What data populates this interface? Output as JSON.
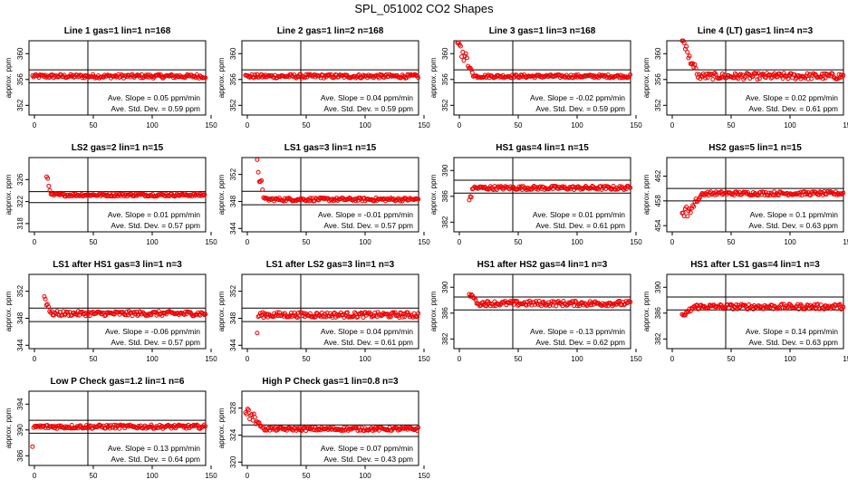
{
  "page_title": "SPL_051002  CO2 Shapes",
  "chart_data": [
    {
      "type": "scatter",
      "title": "Line 1 gas=1 lin=1 n=168",
      "ylabel": "approx. ppm",
      "xlim": [
        0,
        150
      ],
      "ylim": [
        350.5,
        362
      ],
      "yticks": [
        352,
        356,
        360
      ],
      "xticks": [
        0,
        50,
        100,
        150
      ],
      "hlines": [
        357.5,
        355.5
      ],
      "vline": 50,
      "annotation_1": "Ave. Slope =  0.05  ppm/min",
      "annotation_2": "Ave. Std. Dev. =  0.59  ppm",
      "series": [
        {
          "color": "#ee0000",
          "points": [
            [
              0.5,
              356.5
            ],
            [
              150,
              356.5
            ]
          ],
          "start": 3,
          "baseline": 356.5,
          "noise": 0.3,
          "spike": 0
        }
      ]
    },
    {
      "type": "scatter",
      "title": "Line 2 gas=1 lin=2 n=168",
      "ylabel": "approx. ppm",
      "xlim": [
        0,
        150
      ],
      "ylim": [
        350.5,
        362
      ],
      "yticks": [
        352,
        356,
        360
      ],
      "xticks": [
        0,
        50,
        100,
        150
      ],
      "hlines": [
        357.5,
        355.5
      ],
      "vline": 50,
      "annotation_1": "Ave. Slope =  0.04  ppm/min",
      "annotation_2": "Ave. Std. Dev. =  0.59  ppm",
      "series": [
        {
          "color": "#ee0000",
          "points": [],
          "start": 3,
          "baseline": 356.5,
          "noise": 0.3,
          "spike": 0
        }
      ]
    },
    {
      "type": "scatter",
      "title": "Line 3 gas=1 lin=3 n=168",
      "ylabel": "approx. ppm",
      "xlim": [
        0,
        150
      ],
      "ylim": [
        350.5,
        362
      ],
      "yticks": [
        352,
        356,
        360
      ],
      "xticks": [
        0,
        50,
        100,
        150
      ],
      "hlines": [
        357.5,
        355.5
      ],
      "vline": 50,
      "annotation_1": "Ave. Slope =  -0.02  ppm/min",
      "annotation_2": "Ave. Std. Dev. =  0.59  ppm",
      "series": [
        {
          "color": "#ee0000",
          "points": [],
          "start": 3,
          "baseline": 356.5,
          "noise": 0.25,
          "spike": 5.5,
          "spike_len": 14
        }
      ]
    },
    {
      "type": "scatter",
      "title": "Line 4 (LT) gas=1 lin=4 n=3",
      "ylabel": "approx. ppm",
      "xlim": [
        0,
        150
      ],
      "ylim": [
        350.5,
        362
      ],
      "yticks": [
        352,
        356,
        360
      ],
      "xticks": [
        0,
        50,
        100,
        150
      ],
      "hlines": [
        357.5,
        355.5
      ],
      "vline": 50,
      "annotation_1": "Ave. Slope =  0.02  ppm/min",
      "annotation_2": "Ave. Std. Dev. =  0.61  ppm",
      "series": [
        {
          "color": "#ee0000",
          "points": [],
          "start": 13,
          "baseline": 356.5,
          "noise": 0.5,
          "spike": 5.5,
          "spike_len": 14
        }
      ]
    },
    {
      "type": "scatter",
      "title": "LS2 gas=2 lin=1 n=15",
      "ylabel": "approx. ppm",
      "xlim": [
        0,
        150
      ],
      "ylim": [
        316.5,
        330
      ],
      "yticks": [
        318,
        322,
        326
      ],
      "xticks": [
        0,
        50,
        100,
        150
      ],
      "hlines": [
        323.8,
        321.8
      ],
      "vline": 50,
      "annotation_1": "Ave. Slope =  0.01  ppm/min",
      "annotation_2": "Ave. Std. Dev. =  0.57  ppm",
      "series": [
        {
          "color": "#ee0000",
          "points": [],
          "start": 15,
          "baseline": 323.2,
          "noise": 0.25,
          "spike": 3.0,
          "spike_len": 4
        }
      ]
    },
    {
      "type": "scatter",
      "title": "LS1 gas=3 lin=1 n=15",
      "ylabel": "approx. ppm",
      "xlim": [
        0,
        150
      ],
      "ylim": [
        343.5,
        354.5
      ],
      "yticks": [
        344,
        348,
        352
      ],
      "xticks": [
        0,
        50,
        100,
        150
      ],
      "hlines": [
        349.5,
        347.5
      ],
      "vline": 50,
      "annotation_1": "Ave. Slope =  -0.01  ppm/min",
      "annotation_2": "Ave. Std. Dev. =  0.57  ppm",
      "series": [
        {
          "color": "#ee0000",
          "points": [],
          "start": 13,
          "baseline": 348.3,
          "noise": 0.25,
          "spike": 5.5,
          "spike_len": 6
        }
      ]
    },
    {
      "type": "scatter",
      "title": "HS1 gas=4 lin=1 n=15",
      "ylabel": "approx. ppm",
      "xlim": [
        0,
        150
      ],
      "ylim": [
        380.5,
        392
      ],
      "yticks": [
        382,
        386,
        390
      ],
      "xticks": [
        0,
        50,
        100,
        150
      ],
      "hlines": [
        388.5,
        386.5
      ],
      "vline": 50,
      "annotation_1": "Ave. Slope =  0.01  ppm/min",
      "annotation_2": "Ave. Std. Dev. =  0.61  ppm",
      "series": [
        {
          "color": "#ee0000",
          "points": [],
          "start": 13,
          "baseline": 387.3,
          "noise": 0.3,
          "spike": -2.5,
          "spike_len": 3
        }
      ]
    },
    {
      "type": "scatter",
      "title": "HS2 gas=5 lin=1 n=15",
      "ylabel": "approx. ppm",
      "xlim": [
        0,
        150
      ],
      "ylim": [
        453,
        465
      ],
      "yticks": [
        454,
        458,
        462
      ],
      "xticks": [
        0,
        50,
        100,
        150
      ],
      "hlines": [
        460,
        458
      ],
      "vline": 50,
      "annotation_1": "Ave. Slope =  0.1  ppm/min",
      "annotation_2": "Ave. Std. Dev. =  0.63  ppm",
      "series": [
        {
          "color": "#ee0000",
          "points": [],
          "start": 13,
          "baseline": 459.2,
          "noise": 0.3,
          "spike": -4.0,
          "spike_len": 18
        }
      ]
    },
    {
      "type": "scatter",
      "title": "LS1 after HS1 gas=3 lin=1 n=3",
      "ylabel": "approx. ppm",
      "xlim": [
        0,
        150
      ],
      "ylim": [
        343.5,
        354.5
      ],
      "yticks": [
        344,
        348,
        352
      ],
      "xticks": [
        0,
        50,
        100,
        150
      ],
      "hlines": [
        349.5,
        347.5
      ],
      "vline": 50,
      "annotation_1": "Ave. Slope =  -0.06  ppm/min",
      "annotation_2": "Ave. Std. Dev. =  0.57  ppm",
      "series": [
        {
          "color": "#ee0000",
          "points": [],
          "start": 13,
          "baseline": 348.7,
          "noise": 0.35,
          "spike": 2.5,
          "spike_len": 6
        }
      ]
    },
    {
      "type": "scatter",
      "title": "LS1 after LS2 gas=3 lin=1 n=3",
      "ylabel": "approx. ppm",
      "xlim": [
        0,
        150
      ],
      "ylim": [
        343.5,
        354.5
      ],
      "yticks": [
        344,
        348,
        352
      ],
      "xticks": [
        0,
        50,
        100,
        150
      ],
      "hlines": [
        349.5,
        347.5
      ],
      "vline": 50,
      "annotation_1": "Ave. Slope =  0.04  ppm/min",
      "annotation_2": "Ave. Std. Dev. =  0.61  ppm",
      "series": [
        {
          "color": "#ee0000",
          "points": [],
          "start": 13,
          "baseline": 348.5,
          "noise": 0.4,
          "spike": -3.5,
          "spike_len": 1
        }
      ]
    },
    {
      "type": "scatter",
      "title": "HS1 after HS2 gas=4 lin=1 n=3",
      "ylabel": "approx. ppm",
      "xlim": [
        0,
        150
      ],
      "ylim": [
        380.5,
        392
      ],
      "yticks": [
        382,
        386,
        390
      ],
      "xticks": [
        0,
        50,
        100,
        150
      ],
      "hlines": [
        388.5,
        386.5
      ],
      "vline": 50,
      "annotation_1": "Ave. Slope =  -0.13  ppm/min",
      "annotation_2": "Ave. Std. Dev. =  0.62  ppm",
      "series": [
        {
          "color": "#ee0000",
          "points": [],
          "start": 13,
          "baseline": 387.5,
          "noise": 0.4,
          "spike": 1.5,
          "spike_len": 8
        }
      ]
    },
    {
      "type": "scatter",
      "title": "HS1 after LS1 gas=4 lin=1 n=3",
      "ylabel": "approx. ppm",
      "xlim": [
        0,
        150
      ],
      "ylim": [
        380.5,
        392
      ],
      "yticks": [
        382,
        386,
        390
      ],
      "xticks": [
        0,
        50,
        100,
        150
      ],
      "hlines": [
        388.5,
        386.5
      ],
      "vline": 50,
      "annotation_1": "Ave. Slope =  0.14  ppm/min",
      "annotation_2": "Ave. Std. Dev. =  0.63  ppm",
      "series": [
        {
          "color": "#ee0000",
          "points": [],
          "start": 13,
          "baseline": 387.0,
          "noise": 0.4,
          "spike": -1.5,
          "spike_len": 10
        }
      ]
    },
    {
      "type": "scatter",
      "title": "Low P Check gas=1.2 lin=1 n=6",
      "ylabel": "approx. ppm",
      "xlim": [
        0,
        150
      ],
      "ylim": [
        384.5,
        396
      ],
      "yticks": [
        386,
        390,
        394
      ],
      "xticks": [
        0,
        50,
        100,
        150
      ],
      "hlines": [
        391.5,
        389.5
      ],
      "vline": 50,
      "annotation_1": "Ave. Slope =  0.13  ppm/min",
      "annotation_2": "Ave. Std. Dev. =  0.64  ppm",
      "series": [
        {
          "color": "#ee0000",
          "points": [],
          "start": 3,
          "baseline": 390.5,
          "noise": 0.3,
          "spike": -3.0,
          "spike_len": 1
        }
      ]
    },
    {
      "type": "scatter",
      "title": "High P Check gas=1 lin=0.8 n=3",
      "ylabel": "approx. ppm",
      "xlim": [
        0,
        150
      ],
      "ylim": [
        319.5,
        330.5
      ],
      "yticks": [
        320,
        324,
        328
      ],
      "xticks": [
        0,
        50,
        100,
        150
      ],
      "hlines": [
        325.5,
        323.8
      ],
      "vline": 50,
      "annotation_1": "Ave. Slope =  0.07  ppm/min",
      "annotation_2": "Ave. Std. Dev. =  0.43  ppm",
      "series": [
        {
          "color": "#ee0000",
          "points": [],
          "start": 3,
          "baseline": 324.9,
          "noise": 0.25,
          "spike": 3.0,
          "spike_len": 16
        }
      ]
    }
  ]
}
